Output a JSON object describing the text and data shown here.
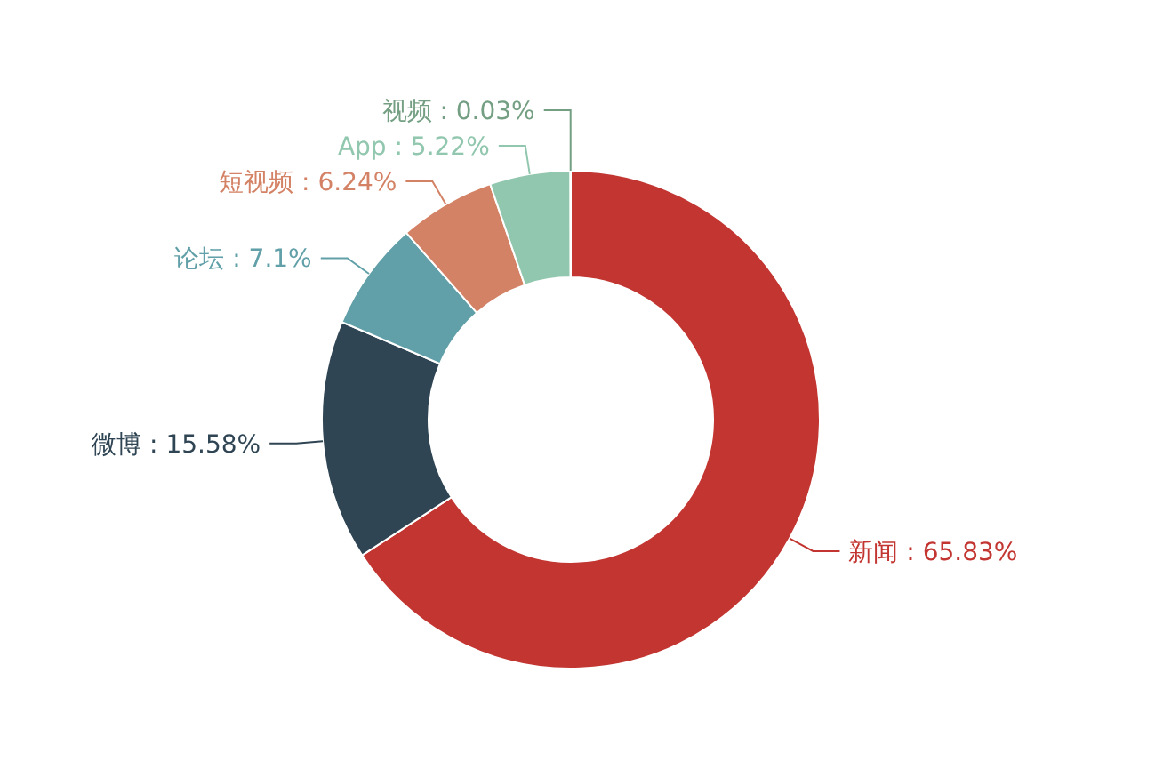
{
  "chart_data": {
    "type": "donut",
    "categories": [
      "新闻",
      "微博",
      "论坛",
      "短视频",
      "App",
      "视频"
    ],
    "values": [
      65.83,
      15.58,
      7.1,
      6.24,
      5.22,
      0.03
    ],
    "colors": [
      "#c23531",
      "#2f4554",
      "#61a0a8",
      "#d48265",
      "#91c7ae",
      "#749f83"
    ],
    "value_labels": [
      ": 65.83%",
      ": 15.58%",
      ": 7.1%",
      ": 6.24%",
      ": 5.22%",
      ": 0.03%"
    ]
  }
}
